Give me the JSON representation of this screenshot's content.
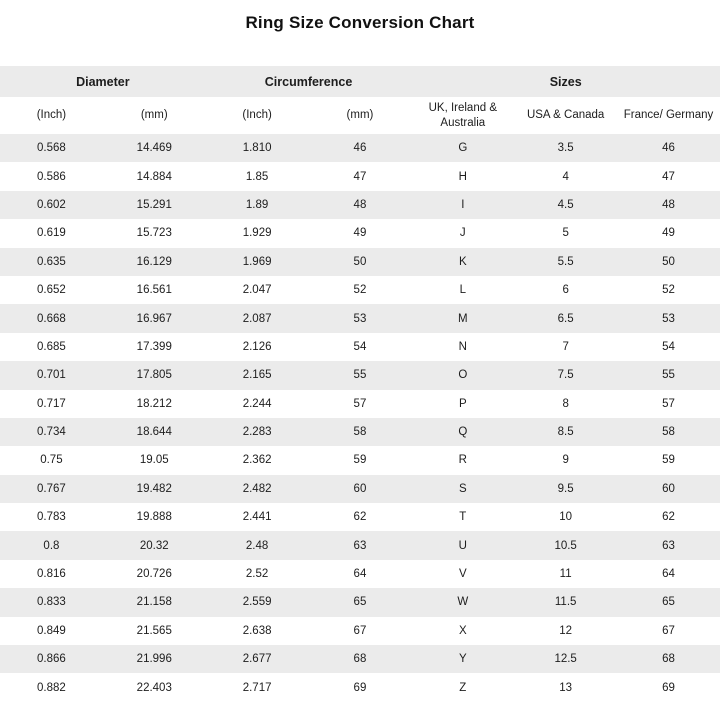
{
  "page": {
    "title": "Ring Size Conversion Chart"
  },
  "colors": {
    "stripe": "#ebebeb",
    "header_band": "#ebebeb",
    "text": "#1d1d1d",
    "background": "#ffffff"
  },
  "chart_data": {
    "type": "table",
    "title": "Ring Size Conversion Chart",
    "column_groups": [
      {
        "label": "Diameter",
        "span": 2
      },
      {
        "label": "Circumference",
        "span": 2
      },
      {
        "label": "Sizes",
        "span": 3
      }
    ],
    "columns": [
      "(Inch)",
      "(mm)",
      "(Inch)",
      "(mm)",
      "UK, Ireland & Australia",
      "USA & Canada",
      "France/ Germany"
    ],
    "rows": [
      [
        "0.568",
        "14.469",
        "1.810",
        "46",
        "G",
        "3.5",
        "46"
      ],
      [
        "0.586",
        "14.884",
        "1.85",
        "47",
        "H",
        "4",
        "47"
      ],
      [
        "0.602",
        "15.291",
        "1.89",
        "48",
        "I",
        "4.5",
        "48"
      ],
      [
        "0.619",
        "15.723",
        "1.929",
        "49",
        "J",
        "5",
        "49"
      ],
      [
        "0.635",
        "16.129",
        "1.969",
        "50",
        "K",
        "5.5",
        "50"
      ],
      [
        "0.652",
        "16.561",
        "2.047",
        "52",
        "L",
        "6",
        "52"
      ],
      [
        "0.668",
        "16.967",
        "2.087",
        "53",
        "M",
        "6.5",
        "53"
      ],
      [
        "0.685",
        "17.399",
        "2.126",
        "54",
        "N",
        "7",
        "54"
      ],
      [
        "0.701",
        "17.805",
        "2.165",
        "55",
        "O",
        "7.5",
        "55"
      ],
      [
        "0.717",
        "18.212",
        "2.244",
        "57",
        "P",
        "8",
        "57"
      ],
      [
        "0.734",
        "18.644",
        "2.283",
        "58",
        "Q",
        "8.5",
        "58"
      ],
      [
        "0.75",
        "19.05",
        "2.362",
        "59",
        "R",
        "9",
        "59"
      ],
      [
        "0.767",
        "19.482",
        "2.482",
        "60",
        "S",
        "9.5",
        "60"
      ],
      [
        "0.783",
        "19.888",
        "2.441",
        "62",
        "T",
        "10",
        "62"
      ],
      [
        "0.8",
        "20.32",
        "2.48",
        "63",
        "U",
        "10.5",
        "63"
      ],
      [
        "0.816",
        "20.726",
        "2.52",
        "64",
        "V",
        "11",
        "64"
      ],
      [
        "0.833",
        "21.158",
        "2.559",
        "65",
        "W",
        "11.5",
        "65"
      ],
      [
        "0.849",
        "21.565",
        "2.638",
        "67",
        "X",
        "12",
        "67"
      ],
      [
        "0.866",
        "21.996",
        "2.677",
        "68",
        "Y",
        "12.5",
        "68"
      ],
      [
        "0.882",
        "22.403",
        "2.717",
        "69",
        "Z",
        "13",
        "69"
      ]
    ]
  }
}
